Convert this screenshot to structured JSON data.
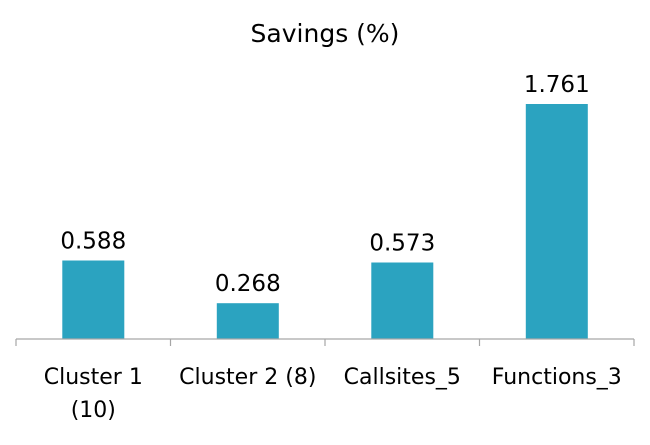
{
  "chart_data": {
    "type": "bar",
    "title": "Savings (%)",
    "categories": [
      "Cluster 1 (10)",
      "Cluster 2 (8)",
      "Callsites_5",
      "Functions_3"
    ],
    "category_lines": [
      [
        "Cluster 1",
        "(10)"
      ],
      [
        "Cluster 2 (8)"
      ],
      [
        "Callsites_5"
      ],
      [
        "Functions_3"
      ]
    ],
    "values": [
      0.588,
      0.268,
      0.573,
      1.761
    ],
    "value_labels": [
      "0.588",
      "0.268",
      "0.573",
      "1.761"
    ],
    "xlabel": "",
    "ylabel": "",
    "ylim": [
      0,
      1.761
    ],
    "grid": false,
    "legend": "none",
    "bar_color": "#2ba3c0",
    "axis_color": "#a6a6a6"
  }
}
